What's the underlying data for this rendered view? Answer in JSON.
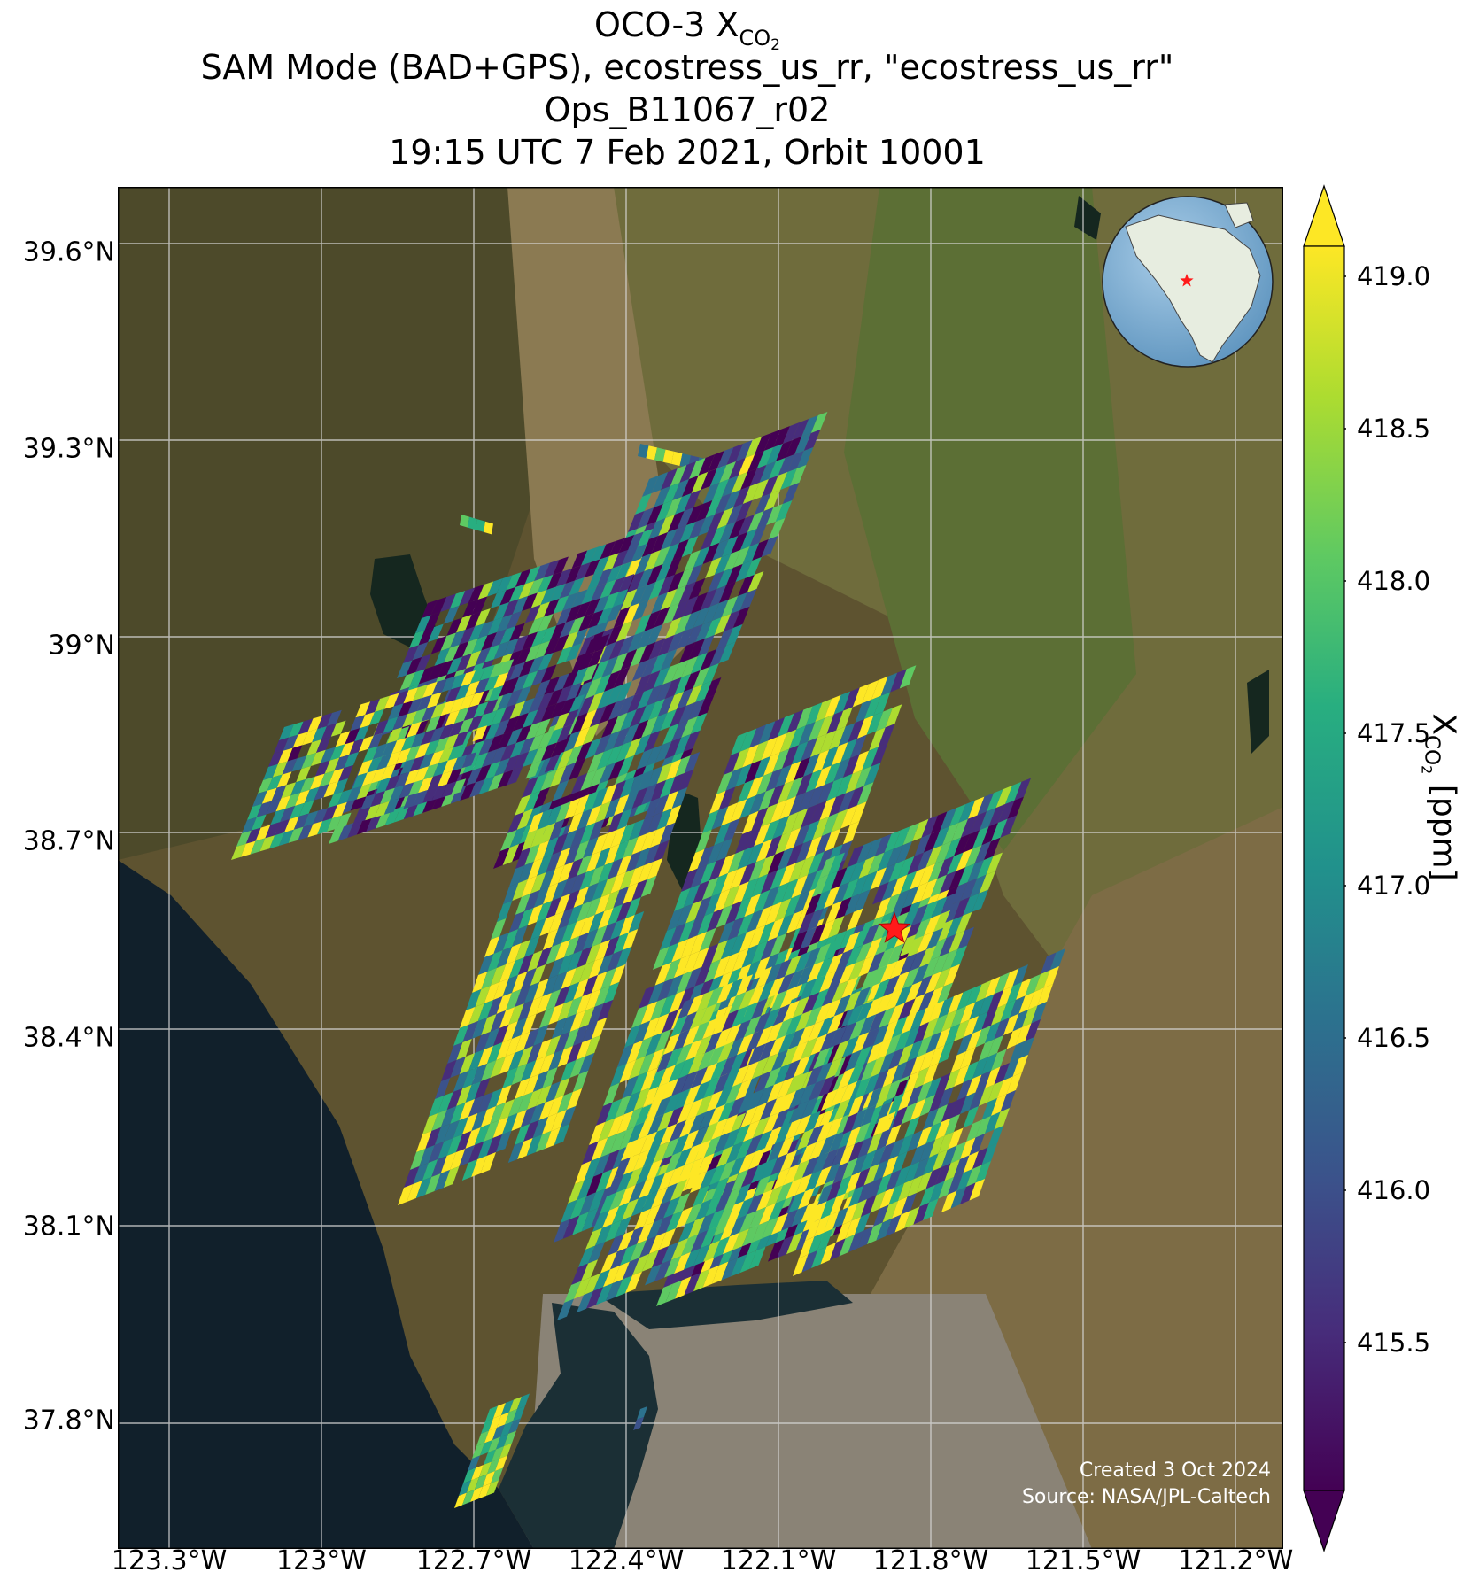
{
  "title": {
    "line1_main": "OCO-3 X",
    "line1_sub": "CO",
    "line1_subsub": "2",
    "line2": "SAM Mode (BAD+GPS), ecostress_us_rr, \"ecostress_us_rr\"",
    "line3": "Ops_B11067_r02",
    "line4": "19:15 UTC 7 Feb 2021, Orbit 10001"
  },
  "map": {
    "lat_ticks": [
      "39.6°N",
      "39.3°N",
      "39°N",
      "38.7°N",
      "38.4°N",
      "38.1°N",
      "37.8°N"
    ],
    "lon_ticks": [
      "123.3°W",
      "123°W",
      "122.7°W",
      "122.4°W",
      "122.1°W",
      "121.8°W",
      "121.5°W",
      "121.2°W"
    ],
    "target_marker": "red-star",
    "inset": "globe-north-america-with-red-star"
  },
  "colorbar": {
    "ticks": [
      "419.0",
      "418.5",
      "418.0",
      "417.5",
      "417.0",
      "416.5",
      "416.0",
      "415.5"
    ],
    "label_main": "X",
    "label_sub": "CO",
    "label_subsub": "2",
    "label_unit": " [ppm]",
    "colormap": "viridis",
    "colors": [
      "#440154",
      "#3b528b",
      "#21918c",
      "#5ec962",
      "#fde725"
    ]
  },
  "credits": {
    "created": "Created 3 Oct 2024",
    "source": "Source: NASA/JPL-Caltech"
  },
  "chart_data": {
    "type": "heatmap",
    "title": "OCO-3 XCO2",
    "subtitle": "SAM Mode (BAD+GPS), ecostress_us_rr, \"ecostress_us_rr\" / Ops_B11067_r02 / 19:15 UTC 7 Feb 2021, Orbit 10001",
    "xlabel": "",
    "ylabel": "",
    "xlim": [
      -123.4,
      -121.1
    ],
    "ylim": [
      37.69,
      39.72
    ],
    "colorbar_range": [
      415.0,
      419.2
    ],
    "colorbar_label": "XCO2 [ppm]",
    "target": {
      "lon": -121.85,
      "lat": 38.56
    }
  }
}
